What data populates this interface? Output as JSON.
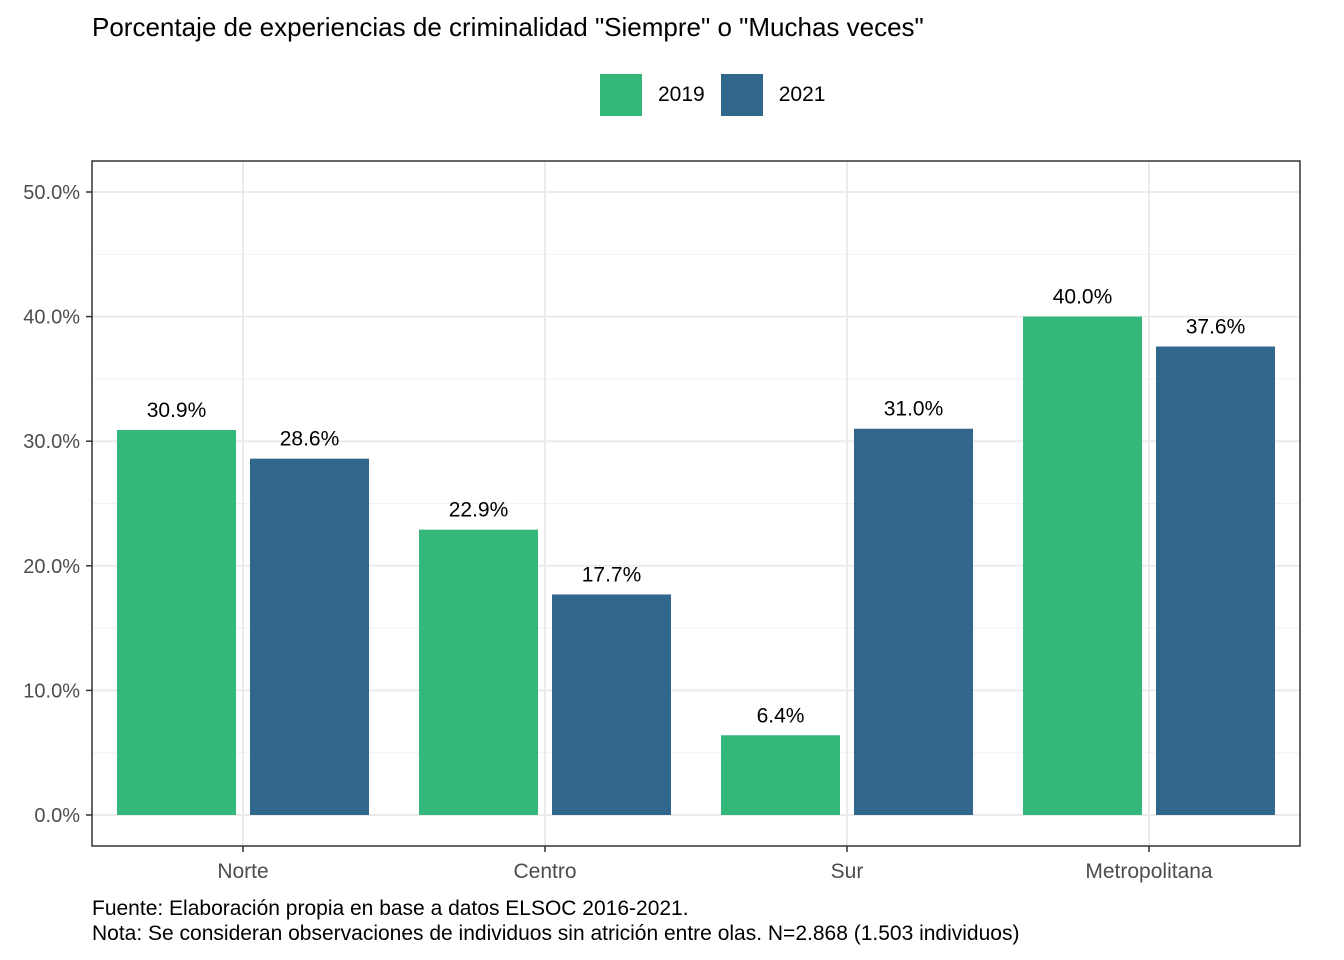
{
  "chart_data": {
    "type": "bar",
    "title": "Porcentaje de experiencias de criminalidad \"Siempre\" o \"Muchas veces\"",
    "categories": [
      "Norte",
      "Centro",
      "Sur",
      "Metropolitana"
    ],
    "series": [
      {
        "name": "2019",
        "color": "#33b77a",
        "values": [
          30.9,
          22.9,
          6.4,
          40.0
        ],
        "labels": [
          "30.9%",
          "22.9%",
          "6.4%",
          "40.0%"
        ]
      },
      {
        "name": "2021",
        "color": "#31668d",
        "values": [
          28.6,
          17.7,
          31.0,
          37.6
        ],
        "labels": [
          "28.6%",
          "17.7%",
          "31.0%",
          "37.6%"
        ]
      }
    ],
    "ylim": [
      0,
      50
    ],
    "yticks": [
      0,
      10,
      20,
      30,
      40,
      50
    ],
    "ytick_labels": [
      "0.0%",
      "10.0%",
      "20.0%",
      "30.0%",
      "40.0%",
      "50.0%"
    ],
    "xlabel": "",
    "ylabel": "",
    "grid": true,
    "legend_position": "top"
  },
  "caption": {
    "line1": "Fuente: Elaboración propia en base a datos ELSOC 2016-2021.",
    "line2": "Nota: Se consideran observaciones de individuos sin atrición entre olas. N=2.868 (1.503 individuos)"
  }
}
